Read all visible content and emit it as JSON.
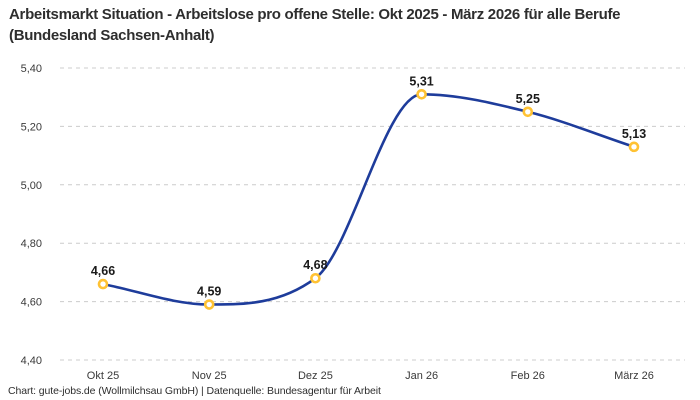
{
  "title": "Arbeitsmarkt Situation - Arbeitslose pro offene Stelle: Okt 2025 - März 2026 für alle Berufe (Bundesland Sachsen-Anhalt)",
  "footer": "Chart: gute-jobs.de (Wollmilchsau GmbH) | Datenquelle: Bundesagentur für Arbeit",
  "colors": {
    "line": "#1e3c9b",
    "marker_ring": "#ffc233",
    "marker_fill": "#ffffff",
    "grid": "#cccccc",
    "title_text": "#2e2e2e",
    "axis_text": "#3a3a3a",
    "point_label_text": "#1a1a1a",
    "background": "#ffffff"
  },
  "chart_data": {
    "type": "line",
    "title": "Arbeitsmarkt Situation - Arbeitslose pro offene Stelle: Okt 2025 - März 2026 für alle Berufe (Bundesland Sachsen-Anhalt)",
    "categories": [
      "Okt 25",
      "Nov 25",
      "Dez 25",
      "Jan 26",
      "Feb 26",
      "März 26"
    ],
    "values": [
      4.66,
      4.59,
      4.68,
      5.31,
      5.25,
      5.13
    ],
    "value_labels": [
      "4,66",
      "4,59",
      "4,68",
      "5,31",
      "5,25",
      "5,13"
    ],
    "xlabel": "",
    "ylabel": "",
    "ylim": [
      4.4,
      5.4
    ],
    "ytick_step": 0.2,
    "ytick_labels": [
      "4,40",
      "4,60",
      "4,80",
      "5,00",
      "5,20",
      "5,40"
    ],
    "grid": "horizontal-dashed",
    "legend": "none",
    "line_smoothing": "monotone-cubic",
    "attribution": "Chart: gute-jobs.de (Wollmilchsau GmbH) | Datenquelle: Bundesagentur für Arbeit"
  }
}
